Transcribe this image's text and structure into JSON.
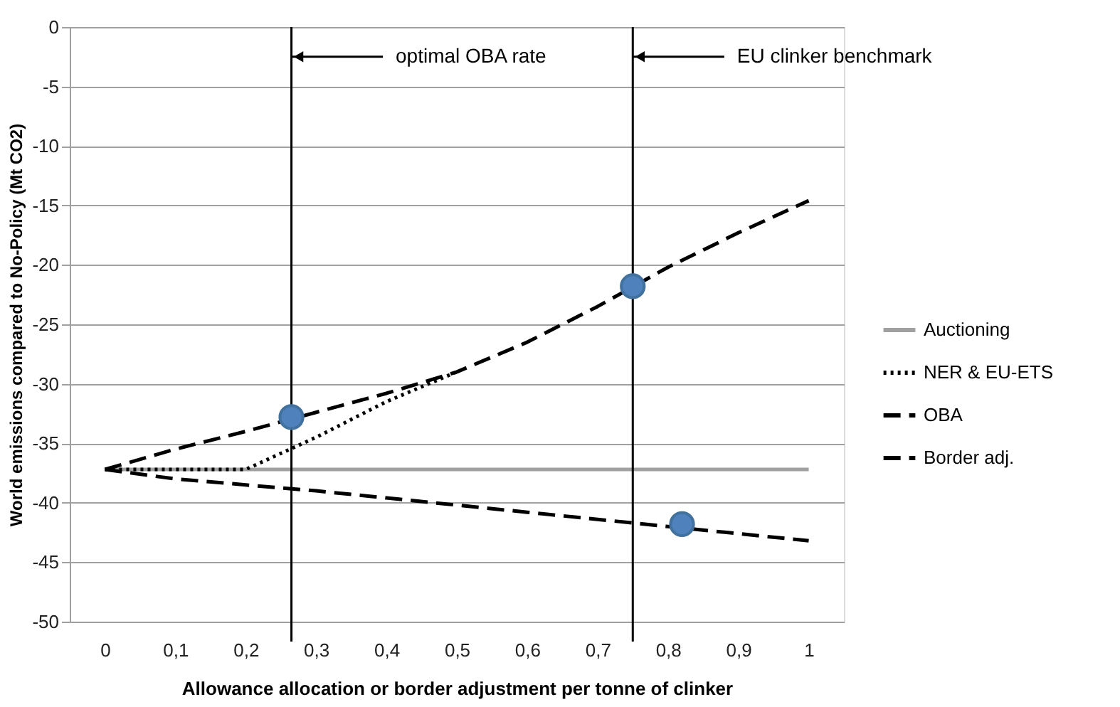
{
  "chart_data": {
    "type": "line",
    "xlabel": "Allowance allocation or border adjustment per tonne of clinker",
    "ylabel": "World emissions compared to No-Policy (Mt CO2)",
    "x": [
      0,
      0.1,
      0.2,
      0.3,
      0.4,
      0.5,
      0.6,
      0.7,
      0.8,
      0.9,
      1
    ],
    "series": [
      {
        "name": "Auctioning",
        "color": "#a0a0a0",
        "line_style": "solid",
        "values": [
          -37.2,
          -37.2,
          -37.2,
          -37.2,
          -37.2,
          -37.2,
          -37.2,
          -37.2,
          -37.2,
          -37.2,
          -37.2
        ]
      },
      {
        "name": "NER & EU-ETS",
        "color": "#000000",
        "line_style": "dotted",
        "values": [
          -37.2,
          -37.2,
          -37.2,
          -34.5,
          -31.5,
          -29,
          null,
          null,
          null,
          null,
          null
        ]
      },
      {
        "name": "OBA",
        "color": "#000000",
        "line_style": "dashed",
        "values": [
          -37.2,
          -35.5,
          -34,
          -32.4,
          -30.8,
          -29,
          -26.5,
          -23.5,
          -20.2,
          -17.3,
          -14.6
        ]
      },
      {
        "name": "Border adj.",
        "color": "#000000",
        "line_style": "dashed",
        "values": [
          -37.2,
          -38,
          -38.5,
          -39,
          -39.6,
          -40.2,
          -40.8,
          -41.4,
          -42,
          -42.6,
          -43.2
        ]
      },
      {
        "type": "scatter",
        "color": "#4f81bd",
        "marker": "circle",
        "x": [
          0.265,
          0.75,
          0.82
        ],
        "values": [
          -32.8,
          -21.8,
          -41.8
        ]
      }
    ],
    "ref_lines": [
      {
        "axis": "x",
        "value": 0.265,
        "label": "optimal OBA rate",
        "color": "#000000"
      },
      {
        "axis": "x",
        "value": 0.75,
        "label": "EU clinker benchmark",
        "color": "#000000"
      }
    ],
    "xlim": [
      -0.05,
      1.05
    ],
    "xticks": [
      0,
      {
        "value": 0.1,
        "label": "0,1"
      },
      {
        "value": 0.2,
        "label": "0,2"
      },
      {
        "value": 0.3,
        "label": "0,3"
      },
      {
        "value": 0.4,
        "label": "0,4"
      },
      {
        "value": 0.5,
        "label": "0,5"
      },
      {
        "value": 0.6,
        "label": "0,6"
      },
      {
        "value": 0.7,
        "label": "0,7"
      },
      {
        "value": 0.8,
        "label": "0,8"
      },
      {
        "value": 0.9,
        "label": "0,9"
      },
      1
    ],
    "ylim": [
      -50,
      0
    ],
    "yticks": [
      -50,
      -45,
      -40,
      -35,
      -30,
      -25,
      -20,
      -15,
      -10,
      -5,
      0
    ],
    "grid": "y",
    "legend": "right"
  }
}
